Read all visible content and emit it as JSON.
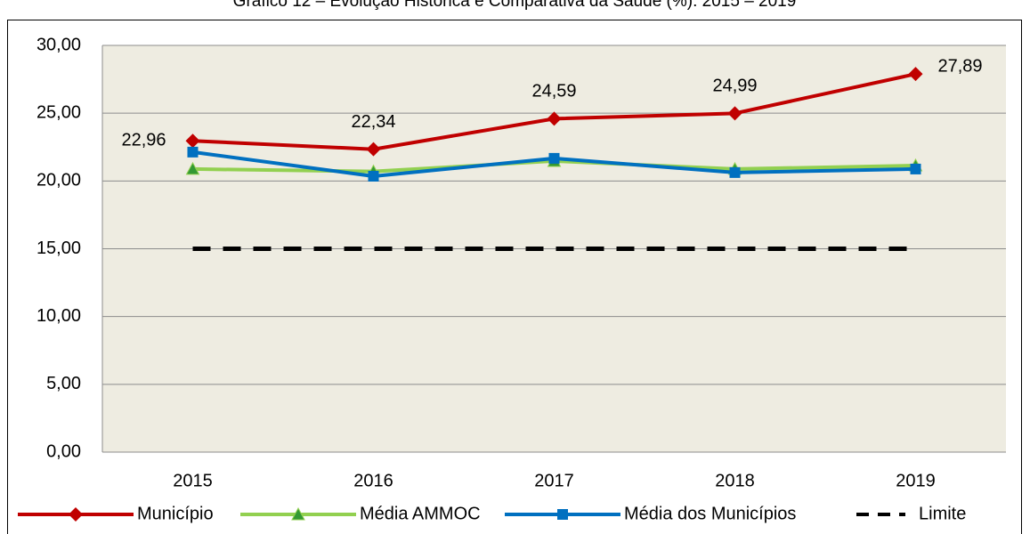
{
  "chart_data": {
    "type": "line",
    "title": "Gráfico 12 – Evolução Histórica e Comparativa da Saúde (%): 2015 – 2019",
    "categories": [
      "2015",
      "2016",
      "2017",
      "2018",
      "2019"
    ],
    "series": [
      {
        "name": "Município",
        "color": "#c00000",
        "marker": "diamond",
        "values": [
          22.96,
          22.34,
          24.59,
          24.99,
          27.89
        ],
        "value_labels": [
          "22,96",
          "22,34",
          "24,59",
          "24,99",
          "27,89"
        ]
      },
      {
        "name": "Média AMMOC",
        "color": "#92d050",
        "marker": "triangle",
        "values": [
          20.88,
          20.7,
          21.47,
          20.88,
          21.14
        ]
      },
      {
        "name": "Média dos Municípios",
        "color": "#0070c0",
        "marker": "square",
        "values": [
          22.13,
          20.35,
          21.67,
          20.62,
          20.88
        ]
      },
      {
        "name": "Limite",
        "color": "#000000",
        "marker": "none",
        "dash": true,
        "values": [
          15,
          15,
          15,
          15,
          15
        ]
      }
    ],
    "ylim": [
      0,
      30
    ],
    "yticks": [
      {
        "value": 0,
        "label": "0,00"
      },
      {
        "value": 5,
        "label": "5,00"
      },
      {
        "value": 10,
        "label": "10,00"
      },
      {
        "value": 15,
        "label": "15,00"
      },
      {
        "value": 20,
        "label": "20,00"
      },
      {
        "value": 25,
        "label": "25,00"
      },
      {
        "value": 30,
        "label": "30,00"
      }
    ],
    "grid": true,
    "legend": "bottom"
  }
}
